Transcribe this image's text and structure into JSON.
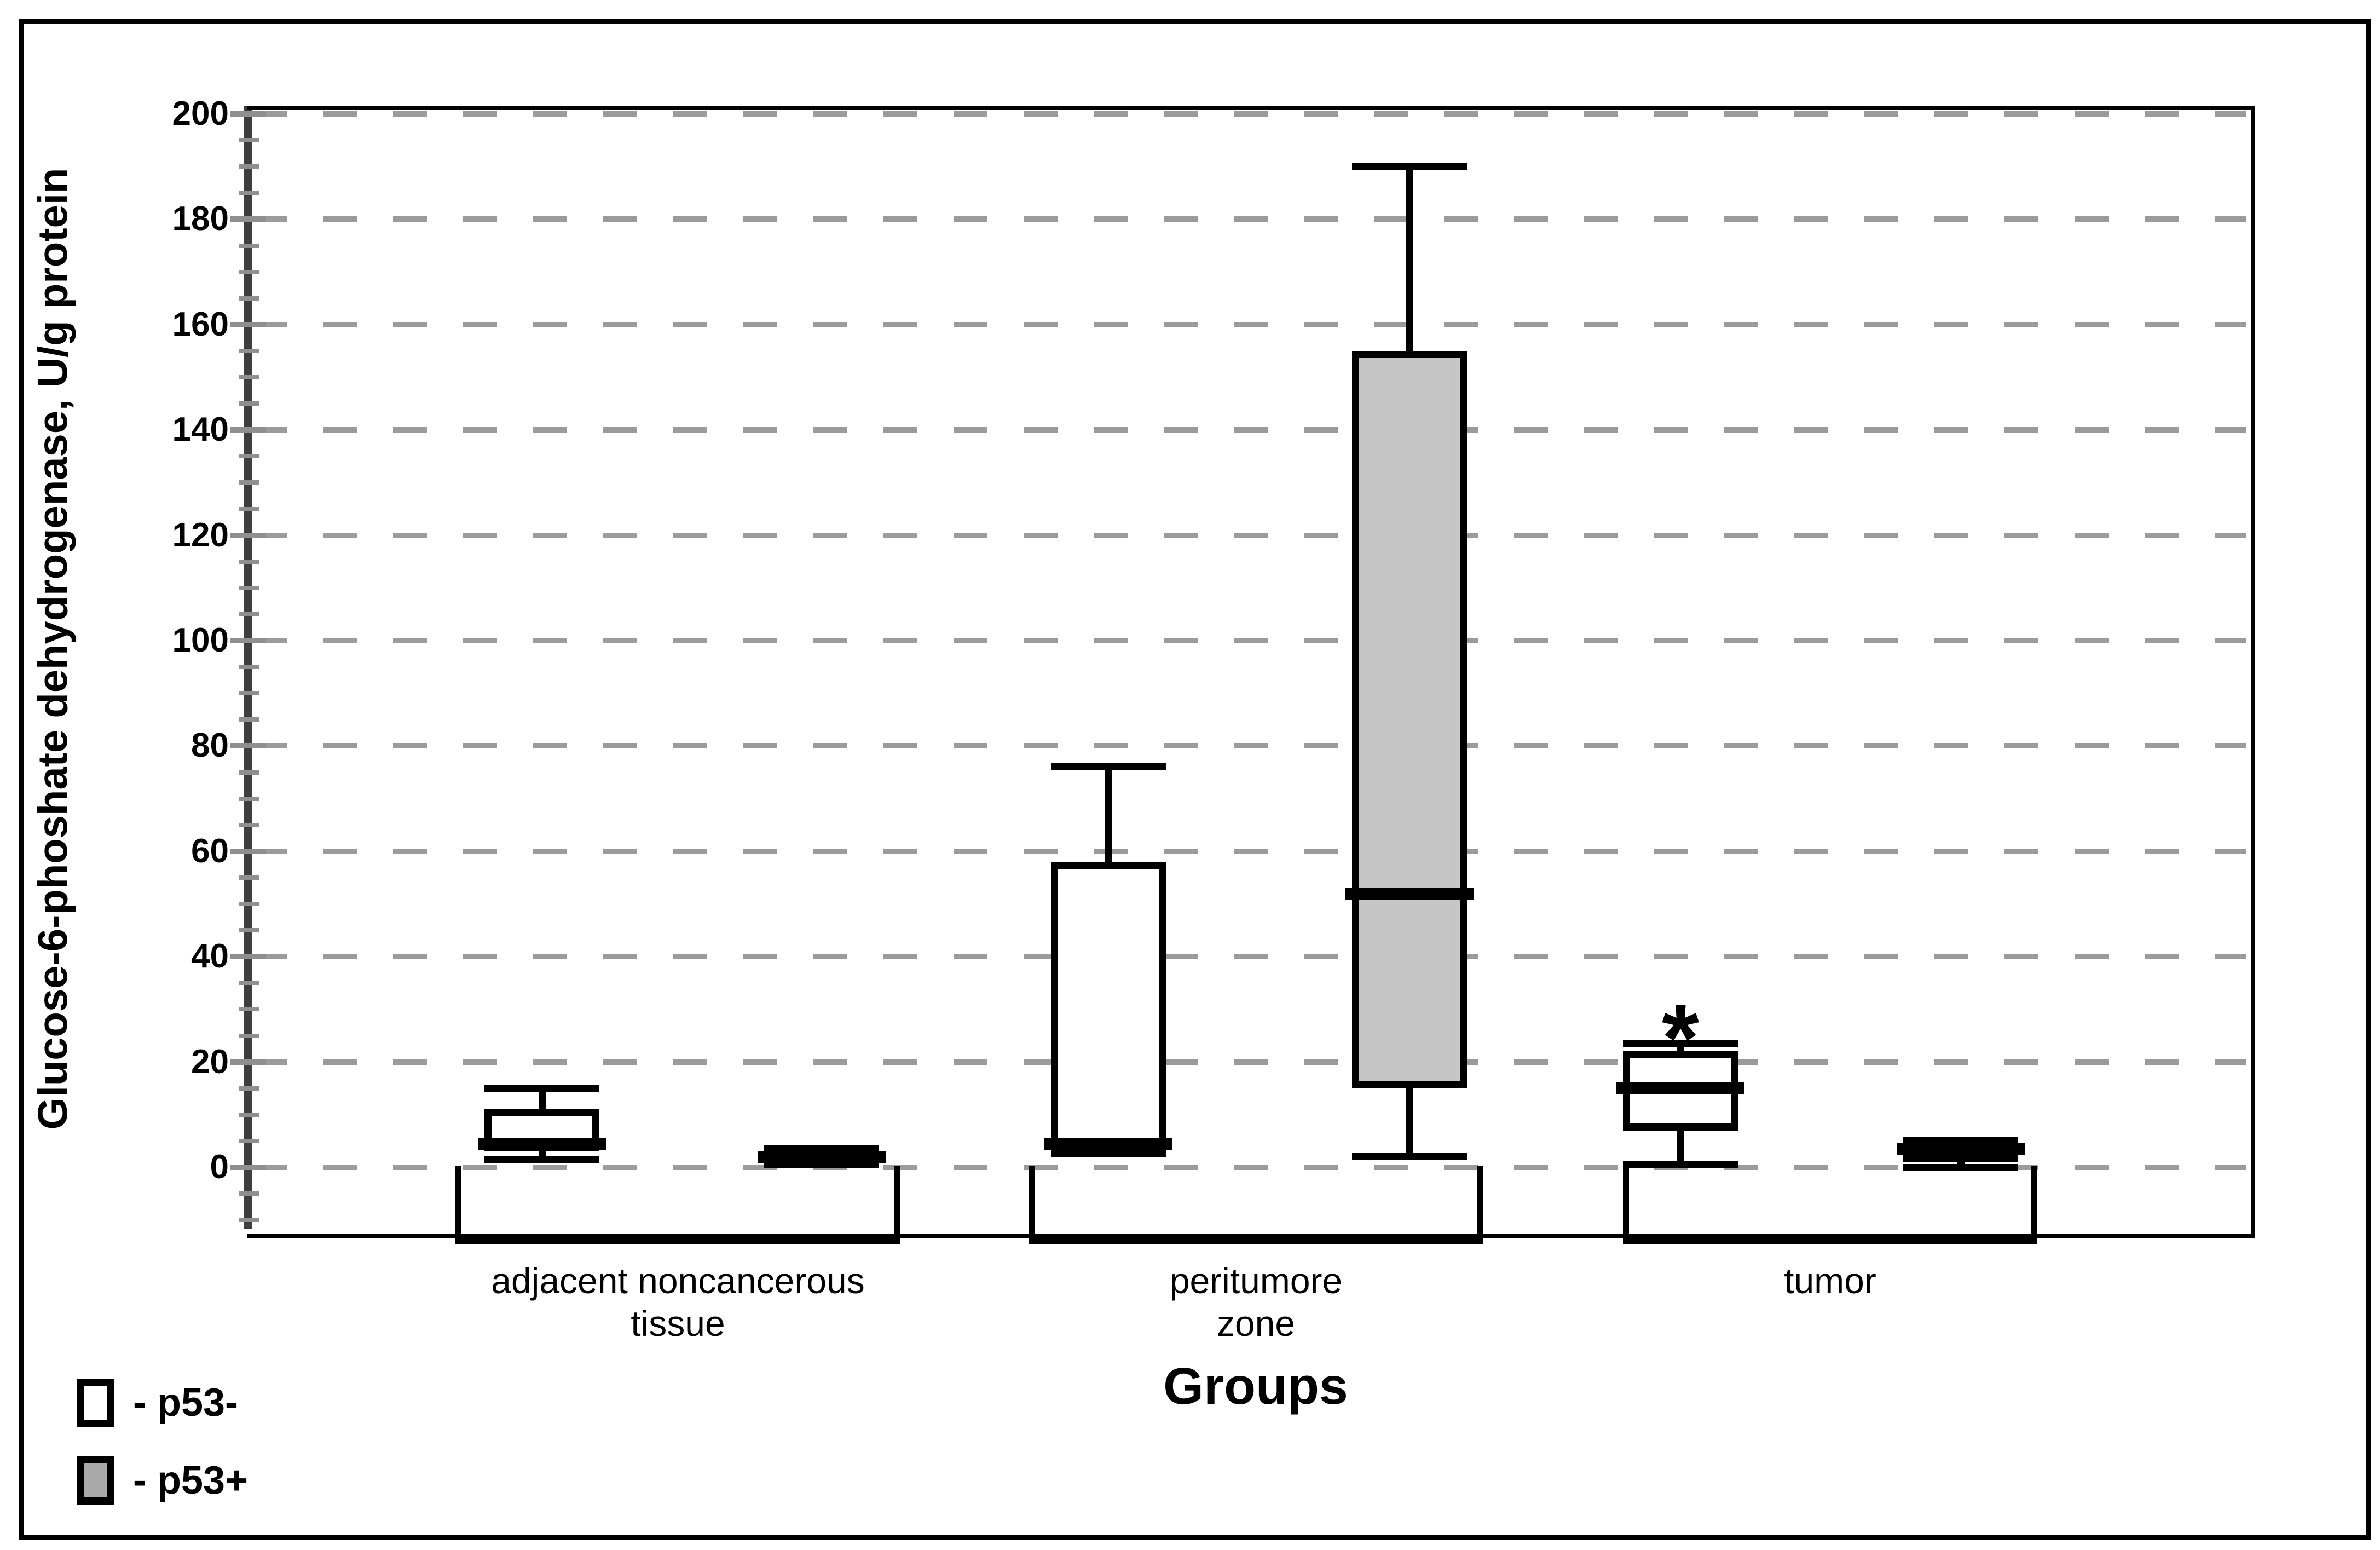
{
  "figure": {
    "y_axis_title": "Glucose-6-phoshate dehydrogenase, U/g protein",
    "x_axis_title": "Groups"
  },
  "legend": {
    "items": [
      {
        "key": "p53neg",
        "swatch_color": "#ffffff",
        "label": "- p53-"
      },
      {
        "key": "p53pos",
        "swatch_color": "#aaaaaa",
        "label": "- p53+"
      }
    ]
  },
  "colors": {
    "background": "#ffffff",
    "ink_black": "#000000",
    "spine_dark": "#3e3e3e",
    "tick_gray": "#8f8f8f",
    "grid_gray": "#9b9b9b",
    "box_gray_fill": "#c6c6c6",
    "legend_gray_fill": "#aaaaaa"
  },
  "chart_data": {
    "type": "boxplot",
    "title": "",
    "ylabel": "Glucose-6-phoshate dehydrogenase, U/g protein",
    "xlabel": "Groups",
    "ylim": [
      -12,
      202
    ],
    "yticks": [
      0,
      20,
      40,
      60,
      80,
      100,
      120,
      140,
      160,
      180,
      200
    ],
    "minor_tick_step": 5,
    "grid": "dashed gray horizontal line at every major tick",
    "legend_position": "bottom-left",
    "groups": [
      {
        "label_lines": [
          "adjacent noncancerous",
          "tissue"
        ]
      },
      {
        "label_lines": [
          "peritumore",
          "zone"
        ]
      },
      {
        "label_lines": [
          "tumor"
        ]
      }
    ],
    "series": [
      {
        "name": "p53-",
        "fill": "#ffffff",
        "boxes": [
          {
            "min": 1.5,
            "q1": 3,
            "median": 4.5,
            "q3": 11,
            "max": 15
          },
          {
            "min": 2.5,
            "q1": 4,
            "median": 4.5,
            "q3": 58,
            "max": 76
          },
          {
            "min": 0.5,
            "q1": 7,
            "median": 15,
            "q3": 22,
            "max": 23.5
          }
        ]
      },
      {
        "name": "p53+",
        "fill": "#c6c6c6",
        "boxes": [
          {
            "min": 0.5,
            "q1": 0.8,
            "median": 2,
            "q3": 3,
            "max": 3.5
          },
          {
            "min": 2,
            "q1": 15,
            "median": 52,
            "q3": 155,
            "max": 190
          },
          {
            "min": 0,
            "q1": 1,
            "median": 3.5,
            "q3": 4.8,
            "max": 5
          }
        ]
      }
    ],
    "annotations": [
      {
        "text": "*",
        "group_index": 2,
        "series_index": 0,
        "value": 27.5
      }
    ]
  }
}
